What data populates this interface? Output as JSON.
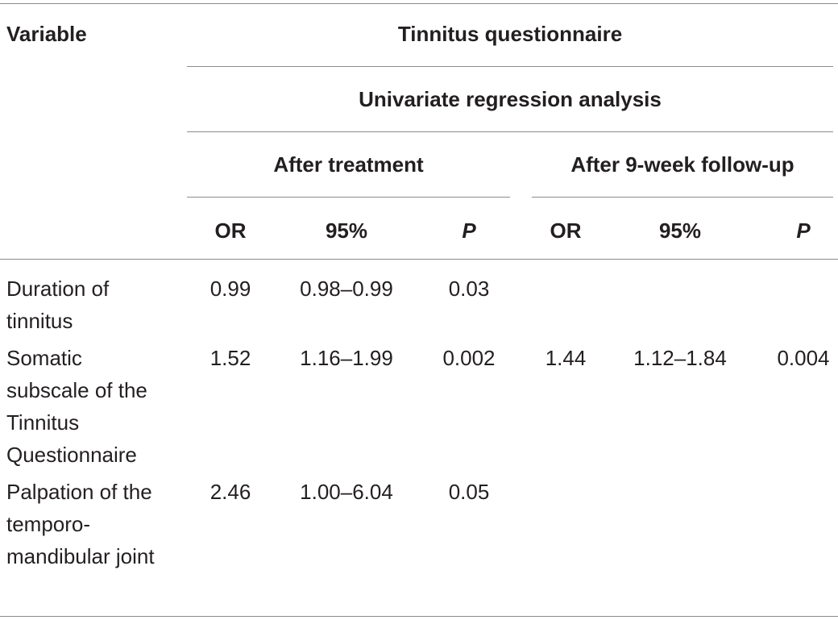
{
  "table": {
    "headers": {
      "variable": "Variable",
      "questionnaire": "Tinnitus questionnaire",
      "analysis": "Univariate regression analysis",
      "group_after_treatment": "After treatment",
      "group_after_followup": "After 9-week follow-up",
      "col_or_1": "OR",
      "col_ci_1": "95%",
      "col_p_1": "P",
      "col_or_2": "OR",
      "col_ci_2": "95%",
      "col_p_2": "P"
    },
    "rows": [
      {
        "variable": "Duration of tinnitus",
        "or_1": "0.99",
        "ci_1": "0.98–0.99",
        "p_1": "0.03",
        "or_2": "",
        "ci_2": "",
        "p_2": ""
      },
      {
        "variable": "Somatic subscale of the Tinnitus Questionnaire",
        "or_1": "1.52",
        "ci_1": "1.16–1.99",
        "p_1": "0.002",
        "or_2": "1.44",
        "ci_2": "1.12–1.84",
        "p_2": "0.004"
      },
      {
        "variable": "Palpation of the temporo-mandibular joint",
        "or_1": "2.46",
        "ci_1": "1.00–6.04",
        "p_1": "0.05",
        "or_2": "",
        "ci_2": "",
        "p_2": ""
      }
    ]
  }
}
